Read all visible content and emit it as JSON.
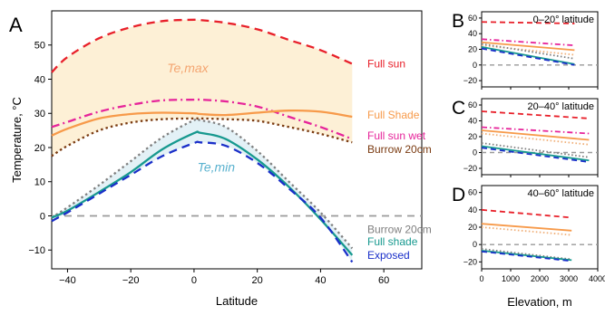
{
  "chart_data": [
    {
      "type": "line",
      "panel_label": "A",
      "xlabel": "Latitude",
      "ylabel": "Temperature, °C",
      "xlim": [
        -45,
        72
      ],
      "ylim": [
        -15.5,
        60
      ],
      "xticks": [
        -40,
        -20,
        0,
        20,
        40,
        60
      ],
      "yticks": [
        -10,
        0,
        10,
        20,
        30,
        40,
        50
      ],
      "x": [
        -45,
        -40,
        -30,
        -20,
        -10,
        0,
        2,
        10,
        20,
        30,
        40,
        50
      ],
      "band_labels": {
        "upper": "Te,max",
        "lower": "Te,min"
      },
      "zero_line": 0,
      "series": [
        {
          "name": "Full sun",
          "color": "#e8202a",
          "dash": "dash",
          "values": [
            42,
            46.5,
            52,
            55.2,
            57,
            57.4,
            57.3,
            56.5,
            54.6,
            51.5,
            48.5,
            44.5
          ]
        },
        {
          "name": "Full sun wet",
          "color": "#e6249a",
          "dash": "dashdot",
          "values": [
            26,
            27.5,
            30.5,
            32.5,
            33.8,
            34,
            34,
            33.5,
            32,
            29,
            26,
            22.5
          ]
        },
        {
          "name": "Full Shade",
          "color": "#f79a4a",
          "dash": "solid",
          "values": [
            23.5,
            25.5,
            28.5,
            29.8,
            30.2,
            30,
            29.8,
            29.5,
            30.2,
            30.8,
            30.5,
            29
          ]
        },
        {
          "name": "Burrow 20cm",
          "color": "#7a3a10",
          "dash": "dot",
          "values": [
            17.5,
            20.5,
            25,
            27.3,
            28.3,
            28.5,
            28.5,
            28.3,
            27.8,
            26,
            24,
            21.5
          ]
        },
        {
          "name": "Burrow 20cm",
          "color": "#7f7f7f",
          "dash": "dot",
          "values": [
            -0.5,
            2.5,
            9,
            16,
            23,
            28,
            28,
            26,
            19,
            10,
            1,
            -9.5
          ]
        },
        {
          "name": "Full shade",
          "color": "#17998f",
          "dash": "solid",
          "values": [
            -0.5,
            1.5,
            7,
            12.8,
            19.5,
            24.2,
            24.3,
            22.5,
            16.5,
            8.5,
            -1,
            -11.5
          ]
        },
        {
          "name": "Exposed",
          "color": "#1a2fc9",
          "dash": "dash",
          "values": [
            -1.5,
            1,
            6.5,
            12,
            17.5,
            21.3,
            21.5,
            20.5,
            15.5,
            8,
            -0.5,
            -13.5
          ]
        }
      ]
    },
    {
      "type": "line",
      "panel_label": "B",
      "title": "0–20° latitude",
      "xlim": [
        0,
        4000
      ],
      "ylim": [
        -28,
        68
      ],
      "xticks": [
        0,
        1000,
        2000,
        3000,
        4000
      ],
      "yticks": [
        -20,
        0,
        20,
        40,
        60
      ],
      "x": [
        0,
        3200
      ],
      "series": [
        {
          "color": "#e8202a",
          "dash": "dash",
          "values": [
            55,
            53
          ]
        },
        {
          "color": "#e6249a",
          "dash": "dashdot",
          "values": [
            33,
            25
          ]
        },
        {
          "color": "#f79a4a",
          "dash": "solid",
          "values": [
            29,
            19
          ]
        },
        {
          "color": "#f0b07a",
          "dash": "dot",
          "values": [
            25,
            13
          ]
        },
        {
          "color": "#7f7f7f",
          "dash": "dot",
          "values": [
            27,
            8
          ]
        },
        {
          "color": "#17998f",
          "dash": "solid",
          "values": [
            23,
            1
          ]
        },
        {
          "color": "#1a2fc9",
          "dash": "dash",
          "values": [
            21,
            0
          ]
        }
      ]
    },
    {
      "type": "line",
      "panel_label": "C",
      "title": "20–40° latitude",
      "xlim": [
        0,
        4000
      ],
      "ylim": [
        -28,
        68
      ],
      "xticks": [
        0,
        1000,
        2000,
        3000,
        4000
      ],
      "yticks": [
        -20,
        0,
        20,
        40,
        60
      ],
      "x": [
        0,
        3700
      ],
      "series": [
        {
          "color": "#e8202a",
          "dash": "dash",
          "values": [
            52,
            43
          ]
        },
        {
          "color": "#e6249a",
          "dash": "dashdot",
          "values": [
            32,
            24
          ]
        },
        {
          "color": "#f79a4a",
          "dash": "solid",
          "values": [
            28,
            16
          ]
        },
        {
          "color": "#f0b07a",
          "dash": "dot",
          "values": [
            24,
            10
          ]
        },
        {
          "color": "#7f7f7f",
          "dash": "dot",
          "values": [
            12,
            -6
          ]
        },
        {
          "color": "#17998f",
          "dash": "solid",
          "values": [
            8,
            -10
          ]
        },
        {
          "color": "#1a2fc9",
          "dash": "dash",
          "values": [
            6,
            -12
          ]
        }
      ]
    },
    {
      "type": "line",
      "panel_label": "D",
      "title": "40–60° latitude",
      "xlim": [
        0,
        4000
      ],
      "ylim": [
        -28,
        68
      ],
      "xticks": [
        0,
        1000,
        2000,
        3000,
        4000
      ],
      "yticks": [
        -20,
        0,
        20,
        40,
        60
      ],
      "xlabel": "Elevation, m",
      "x": [
        0,
        3100
      ],
      "series": [
        {
          "color": "#e8202a",
          "dash": "dash",
          "values": [
            40,
            31
          ]
        },
        {
          "color": "#f79a4a",
          "dash": "solid",
          "values": [
            24,
            16
          ]
        },
        {
          "color": "#f0b07a",
          "dash": "dot",
          "values": [
            20,
            11
          ]
        },
        {
          "color": "#7f7f7f",
          "dash": "dot",
          "values": [
            -5,
            -17
          ]
        },
        {
          "color": "#17998f",
          "dash": "solid",
          "values": [
            -7,
            -18
          ]
        },
        {
          "color": "#1a2fc9",
          "dash": "dash",
          "values": [
            -8,
            -19
          ]
        }
      ]
    }
  ]
}
